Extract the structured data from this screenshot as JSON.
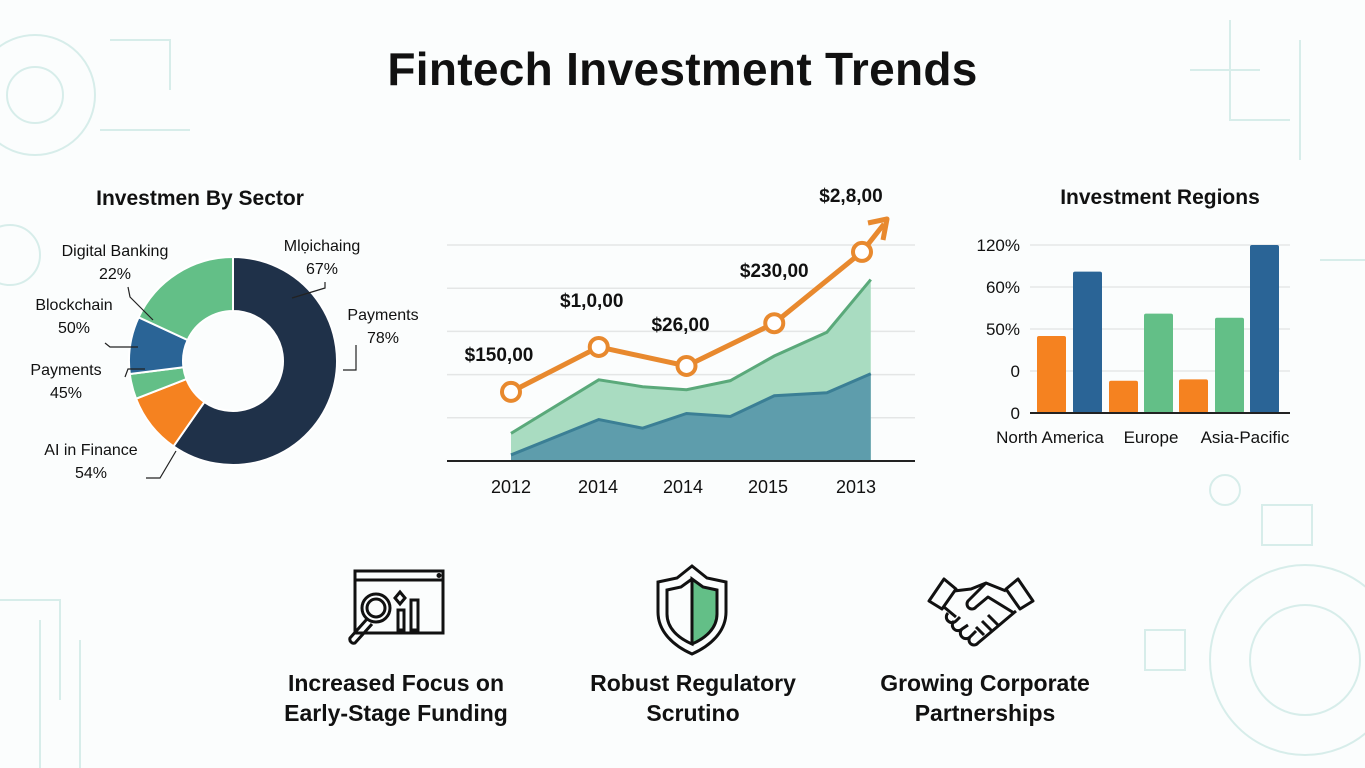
{
  "title": "Fintech Investment Trends",
  "colors": {
    "navy": "#1f3149",
    "orange": "#f58220",
    "green": "#63bf87",
    "blue": "#2a6496",
    "area_green": "#a9dcc1",
    "area_blue": "#5e9dac",
    "line_orange": "#e8892e"
  },
  "chart_data": [
    {
      "type": "pie",
      "title": "Investmen By Sector",
      "donut": true,
      "slices": [
        {
          "label": "Mlọichaing",
          "value_label": "67%",
          "share": 59.7,
          "color": "#1f3149"
        },
        {
          "label": "Payments",
          "value_label": "78%",
          "share": 0,
          "color": "#1f3149"
        },
        {
          "label": "AI in Finance",
          "value_label": "54%",
          "share": 9.4,
          "color": "#f58220"
        },
        {
          "label": "Payments",
          "value_label": "45%",
          "share": 3.9,
          "color": "#63bf87"
        },
        {
          "label": "Blockchain",
          "value_label": "50%",
          "share": 8.9,
          "color": "#2a6496"
        },
        {
          "label": "Digital Banking",
          "value_label": "22%",
          "share": 18.1,
          "color": "#63bf87"
        }
      ]
    },
    {
      "type": "line",
      "categories": [
        "2012",
        "2014",
        "2014",
        "2015",
        "2013"
      ],
      "grid": true,
      "ylim": [
        0,
        5
      ],
      "series": [
        {
          "kind": "line",
          "values": [
            1.6,
            2.64,
            2.2,
            3.19,
            4.84
          ],
          "labels": [
            "$150,00",
            "$1,0,00",
            "$26,00",
            "$230,00",
            "$2,8,00"
          ],
          "color": "#e8892e",
          "arrow": true
        }
      ],
      "areas": [
        {
          "x": [
            0,
            1,
            1.5,
            2,
            2.5,
            3,
            3.6,
            4.1
          ],
          "values": [
            0.64,
            1.88,
            1.72,
            1.65,
            1.86,
            2.43,
            2.98,
            4.2
          ],
          "color": "#a9dcc1",
          "line": "#5aa97a"
        },
        {
          "x": [
            0,
            1,
            1.5,
            2,
            2.5,
            3,
            3.6,
            4.1
          ],
          "values": [
            0.14,
            0.96,
            0.76,
            1.1,
            1.03,
            1.51,
            1.58,
            2.02
          ],
          "color": "#5e9dac",
          "line": "#3b7f95"
        }
      ]
    },
    {
      "type": "bar",
      "title": "Investment Regions",
      "categories": [
        "North America",
        "Europe",
        "Asia-Pacific"
      ],
      "ytick_labels": [
        "0",
        "0",
        "50%",
        "60%",
        "120%"
      ],
      "ylim": [
        0,
        120
      ],
      "grid": true,
      "bars": [
        {
          "category": "North America",
          "value": 55,
          "color": "#f58220"
        },
        {
          "category": "North America",
          "value": 101,
          "color": "#2a6496"
        },
        {
          "category": "Europe",
          "value": 23,
          "color": "#f58220"
        },
        {
          "category": "Europe",
          "value": 71,
          "color": "#63bf87"
        },
        {
          "category": "Asia-Pacific",
          "value": 24,
          "color": "#f58220"
        },
        {
          "category": "Asia-Pacific",
          "value": 68,
          "color": "#63bf87"
        },
        {
          "category": "Asia-Pacific",
          "value": 120,
          "color": "#2a6496"
        }
      ]
    }
  ],
  "features": [
    {
      "icon": "analytics-magnifier-icon",
      "line1": "Increased Focus on",
      "line2": "Early-Stage Funding"
    },
    {
      "icon": "shield-icon",
      "line1": "Robust Regulatory",
      "line2": "Scrutino"
    },
    {
      "icon": "handshake-icon",
      "line1": "Growing Corporate",
      "line2": "Partnerships"
    }
  ]
}
